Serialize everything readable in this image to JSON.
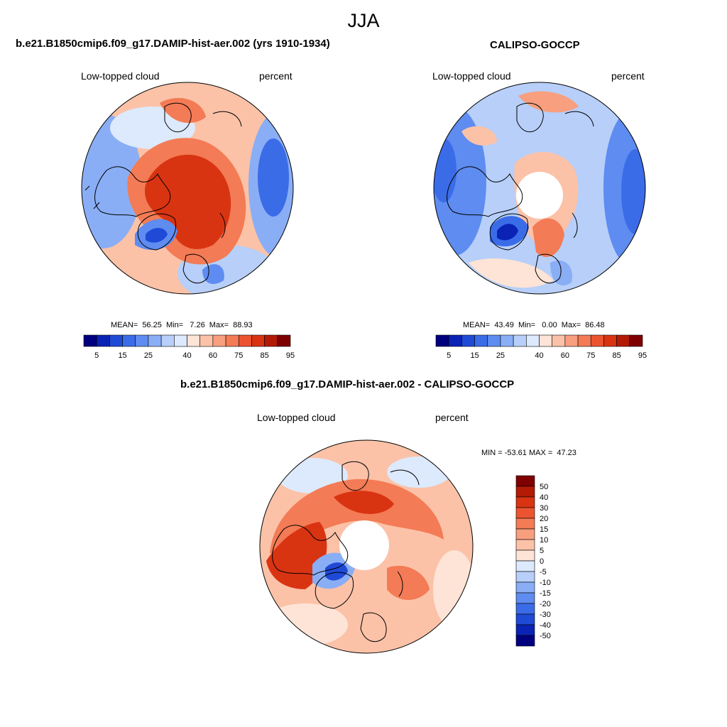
{
  "main_title": "JJA",
  "panels": [
    {
      "title": "b.e21.B1850cmip6.f09_g17.DAMIP-hist-aer.002 (yrs 1910-1934)",
      "left_label": "Low-topped cloud",
      "right_label": "percent",
      "stats": "MEAN=  56.25  Min=   7.26  Max=  88.93"
    },
    {
      "title": "CALIPSO-GOCCP",
      "left_label": "Low-topped cloud",
      "right_label": "percent",
      "stats": "MEAN=  43.49  Min=   0.00  Max=  86.48"
    },
    {
      "title": "b.e21.B1850cmip6.f09_g17.DAMIP-hist-aer.002 - CALIPSO-GOCCP",
      "left_label": "Low-topped cloud",
      "right_label": "percent",
      "stats": "MIN = -53.61 MAX =  47.23"
    }
  ],
  "abs_colorbar": {
    "tick_labels": [
      "5",
      "15",
      "25",
      "40",
      "60",
      "75",
      "85",
      "95"
    ],
    "colors": [
      "#00007f",
      "#0a23b4",
      "#1f4ad6",
      "#3b6ce8",
      "#5e8cf0",
      "#8aaef5",
      "#b7cff9",
      "#dde9fc",
      "#fde4d6",
      "#fbc2a8",
      "#f79f7e",
      "#f37b55",
      "#ec5430",
      "#d93412",
      "#b31b06",
      "#7f0000"
    ]
  },
  "diff_colorbar": {
    "tick_labels": [
      "50",
      "40",
      "30",
      "20",
      "15",
      "10",
      "5",
      "0",
      "-5",
      "-10",
      "-15",
      "-20",
      "-30",
      "-40",
      "-50"
    ],
    "colors": [
      "#7f0000",
      "#b31b06",
      "#d93412",
      "#ec5430",
      "#f37b55",
      "#f79f7e",
      "#fbc2a8",
      "#fde4d6",
      "#dde9fc",
      "#b7cff9",
      "#8aaef5",
      "#5e8cf0",
      "#3b6ce8",
      "#1f4ad6",
      "#0a23b4",
      "#00007f"
    ]
  },
  "chart_data": [
    {
      "type": "heatmap",
      "projection": "north-polar-stereographic",
      "title": "b.e21.B1850cmip6.f09_g17.DAMIP-hist-aer.002 (yrs 1910-1934)",
      "variable": "Low-topped cloud",
      "units": "percent",
      "season": "JJA",
      "mean": 56.25,
      "min": 7.26,
      "max": 88.93,
      "levels": [
        5,
        10,
        15,
        20,
        25,
        30,
        40,
        50,
        60,
        65,
        70,
        75,
        80,
        85,
        90,
        95
      ]
    },
    {
      "type": "heatmap",
      "projection": "north-polar-stereographic",
      "title": "CALIPSO-GOCCP",
      "variable": "Low-topped cloud",
      "units": "percent",
      "season": "JJA",
      "mean": 43.49,
      "min": 0.0,
      "max": 86.48,
      "levels": [
        5,
        10,
        15,
        20,
        25,
        30,
        40,
        50,
        60,
        65,
        70,
        75,
        80,
        85,
        90,
        95
      ]
    },
    {
      "type": "heatmap",
      "projection": "north-polar-stereographic",
      "title": "b.e21.B1850cmip6.f09_g17.DAMIP-hist-aer.002 - CALIPSO-GOCCP",
      "variable": "Low-topped cloud",
      "units": "percent",
      "season": "JJA",
      "min": -53.61,
      "max": 47.23,
      "levels": [
        -50,
        -40,
        -30,
        -20,
        -15,
        -10,
        -5,
        0,
        5,
        10,
        15,
        20,
        30,
        40,
        50
      ]
    }
  ]
}
